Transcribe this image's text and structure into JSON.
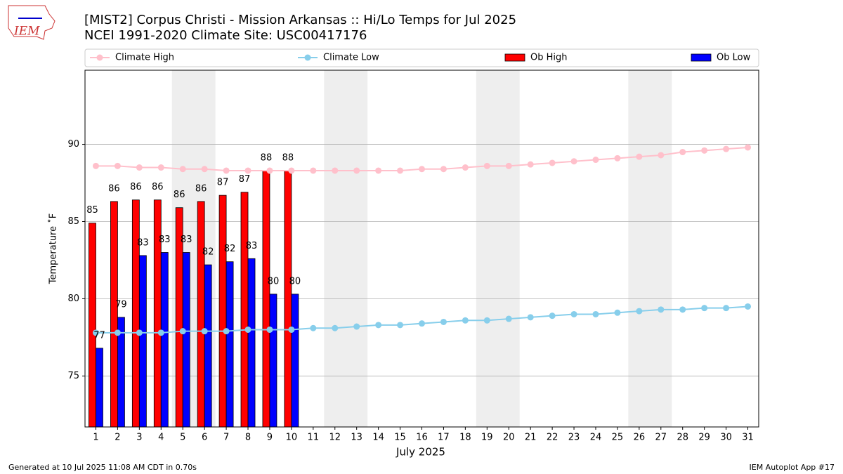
{
  "chart_data": {
    "type": "bar",
    "title": "[MIST2] Corpus Christi - Mission Arkansas :: Hi/Lo Temps for Jul 2025",
    "subtitle": "NCEI 1991-2020 Climate Site: USC00417176",
    "x_label": "July 2025",
    "y_label": "Temperature ˚F",
    "x": [
      1,
      2,
      3,
      4,
      5,
      6,
      7,
      8,
      9,
      10,
      11,
      12,
      13,
      14,
      15,
      16,
      17,
      18,
      19,
      20,
      21,
      22,
      23,
      24,
      25,
      26,
      27,
      28,
      29,
      30,
      31
    ],
    "xlim": [
      0.5,
      31.5
    ],
    "xticks": [
      1,
      2,
      3,
      4,
      5,
      6,
      7,
      8,
      9,
      10,
      11,
      12,
      13,
      14,
      15,
      16,
      17,
      18,
      19,
      20,
      21,
      22,
      23,
      24,
      25,
      26,
      27,
      28,
      29,
      30,
      31
    ],
    "ylim": [
      71.7,
      94.8
    ],
    "yticks": [
      75,
      80,
      85,
      90
    ],
    "grid": true,
    "shaded_x": [
      [
        4.5,
        6.5
      ],
      [
        11.5,
        13.5
      ],
      [
        18.5,
        20.5
      ],
      [
        25.5,
        27.5
      ]
    ],
    "series": [
      {
        "name": "Climate High",
        "type": "line",
        "color": "#ffc0cb",
        "values": [
          88.6,
          88.6,
          88.5,
          88.5,
          88.4,
          88.4,
          88.3,
          88.3,
          88.3,
          88.3,
          88.3,
          88.3,
          88.3,
          88.3,
          88.3,
          88.4,
          88.4,
          88.5,
          88.6,
          88.6,
          88.7,
          88.8,
          88.9,
          89.0,
          89.1,
          89.2,
          89.3,
          89.5,
          89.6,
          89.7,
          89.8
        ]
      },
      {
        "name": "Climate Low",
        "type": "line",
        "color": "#87ceeb",
        "values": [
          77.8,
          77.8,
          77.8,
          77.8,
          77.9,
          77.9,
          77.9,
          78.0,
          78.0,
          78.0,
          78.1,
          78.1,
          78.2,
          78.3,
          78.3,
          78.4,
          78.5,
          78.6,
          78.6,
          78.7,
          78.8,
          78.9,
          79.0,
          79.0,
          79.1,
          79.2,
          79.3,
          79.3,
          79.4,
          79.4,
          79.5
        ]
      },
      {
        "name": "Ob High",
        "type": "bar",
        "color": "#ff0000",
        "values": [
          84.9,
          86.3,
          86.4,
          86.4,
          85.9,
          86.3,
          86.7,
          86.9,
          88.3,
          88.3,
          null,
          null,
          null,
          null,
          null,
          null,
          null,
          null,
          null,
          null,
          null,
          null,
          null,
          null,
          null,
          null,
          null,
          null,
          null,
          null,
          null
        ],
        "value_labels": [
          "85",
          "86",
          "86",
          "86",
          "86",
          "86",
          "87",
          "87",
          "88",
          "88",
          null,
          null,
          null,
          null,
          null,
          null,
          null,
          null,
          null,
          null,
          null,
          null,
          null,
          null,
          null,
          null,
          null,
          null,
          null,
          null,
          null
        ]
      },
      {
        "name": "Ob Low",
        "type": "bar",
        "color": "#0000ff",
        "values": [
          76.8,
          78.8,
          82.8,
          83.0,
          83.0,
          82.2,
          82.4,
          82.6,
          80.3,
          80.3,
          null,
          null,
          null,
          null,
          null,
          null,
          null,
          null,
          null,
          null,
          null,
          null,
          null,
          null,
          null,
          null,
          null,
          null,
          null,
          null,
          null
        ],
        "value_labels": [
          "77",
          "79",
          "83",
          "83",
          "83",
          "82",
          "82",
          "83",
          "80",
          "80",
          null,
          null,
          null,
          null,
          null,
          null,
          null,
          null,
          null,
          null,
          null,
          null,
          null,
          null,
          null,
          null,
          null,
          null,
          null,
          null,
          null
        ]
      }
    ]
  },
  "logo": "IEM",
  "footer": {
    "left": "Generated at 10 Jul 2025 11:08 AM CDT in 0.70s",
    "right": "IEM Autoplot App #17"
  }
}
